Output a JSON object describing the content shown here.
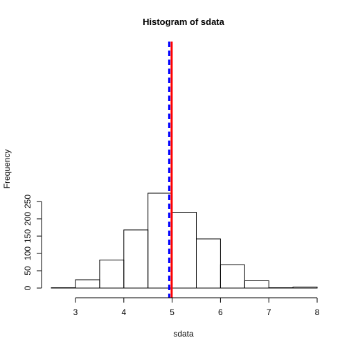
{
  "chart_data": {
    "type": "bar",
    "title": "Histogram of sdata",
    "xlabel": "sdata",
    "ylabel": "Frequency",
    "bins": [
      {
        "start": 2.5,
        "end": 3.0,
        "count": 1
      },
      {
        "start": 3.0,
        "end": 3.5,
        "count": 24
      },
      {
        "start": 3.5,
        "end": 4.0,
        "count": 81
      },
      {
        "start": 4.0,
        "end": 4.5,
        "count": 168
      },
      {
        "start": 4.5,
        "end": 5.0,
        "count": 274
      },
      {
        "start": 5.0,
        "end": 5.5,
        "count": 219
      },
      {
        "start": 5.5,
        "end": 6.0,
        "count": 142
      },
      {
        "start": 6.0,
        "end": 6.5,
        "count": 67
      },
      {
        "start": 6.5,
        "end": 7.0,
        "count": 21
      },
      {
        "start": 7.0,
        "end": 7.5,
        "count": 1
      },
      {
        "start": 7.5,
        "end": 8.0,
        "count": 3
      }
    ],
    "xlim": [
      2.5,
      8.0
    ],
    "ylim": [
      0,
      285
    ],
    "x_ticks": [
      3,
      4,
      5,
      6,
      7,
      8
    ],
    "x_tick_labels": [
      "3",
      "4",
      "5",
      "6",
      "7",
      "8"
    ],
    "y_ticks": [
      0,
      50,
      100,
      150,
      200,
      250
    ],
    "y_tick_labels": [
      "0",
      "50",
      "100",
      "150",
      "200",
      "250"
    ],
    "grid": false,
    "vlines": [
      {
        "x": 4.94,
        "color": "#0000ff",
        "style": "dashed"
      },
      {
        "x": 4.99,
        "color": "#ff0000",
        "style": "solid"
      }
    ]
  }
}
